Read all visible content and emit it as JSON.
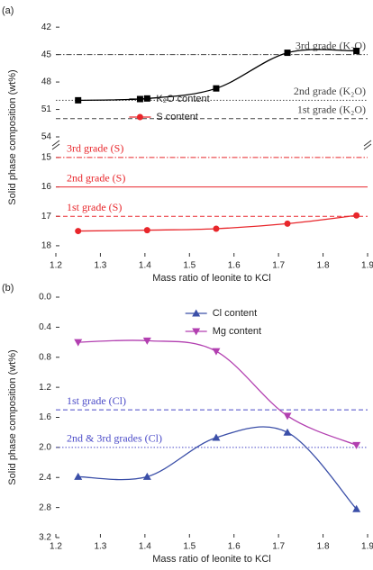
{
  "chart_data": [
    {
      "type": "line",
      "panel_label": "(a)",
      "x_label": "Mass ratio of leonite to KCl",
      "y_label": "Solid phase composition (wt%)",
      "xlim": [
        1.2,
        1.9
      ],
      "xticks": [
        1.2,
        1.3,
        1.4,
        1.5,
        1.6,
        1.7,
        1.8,
        1.9
      ],
      "y_segments": [
        {
          "ylim": [
            14.85,
            18.37
          ],
          "yticks": [
            15,
            16,
            17,
            18
          ]
        },
        {
          "ylim": [
            41,
            54
          ],
          "yticks": [
            42,
            45,
            48,
            51,
            54
          ]
        }
      ],
      "legend": "center left",
      "series": [
        {
          "name": "K₂O content",
          "color": "#000000",
          "marker": "square",
          "segment": 1,
          "x": [
            1.25,
            1.405,
            1.56,
            1.72,
            1.875
          ],
          "values": [
            50.0,
            49.8,
            48.7,
            44.8,
            44.6
          ]
        },
        {
          "name": "S content",
          "color": "#e8262b",
          "marker": "circle",
          "segment": 0,
          "x": [
            1.25,
            1.405,
            1.56,
            1.72,
            1.875
          ],
          "values": [
            17.5,
            17.47,
            17.42,
            17.25,
            16.97
          ]
        }
      ],
      "reference_lines": [
        {
          "label": "1st grade (K₂O)",
          "value": 52,
          "color": "#444444",
          "dash": "dashed",
          "segment": 1
        },
        {
          "label": "2nd grade (K₂O)",
          "value": 50,
          "color": "#444444",
          "dash": "dotted",
          "segment": 1
        },
        {
          "label": "3rd grade (K₂O)",
          "value": 45,
          "color": "#444444",
          "dash": "dashdot",
          "segment": 1
        },
        {
          "label": "1st grade (S)",
          "value": 17,
          "color": "#e8262b",
          "dash": "dashed",
          "segment": 0
        },
        {
          "label": "2nd grade (S)",
          "value": 16,
          "color": "#e8262b",
          "dash": "solid",
          "segment": 0
        },
        {
          "label": "3rd grade (S)",
          "value": 15,
          "color": "#e8262b",
          "dash": "dashdot",
          "segment": 0
        }
      ]
    },
    {
      "type": "line",
      "panel_label": "(b)",
      "x_label": "Mass ratio of leonite to KCl",
      "y_label": "Solid phase composition (wt%)",
      "xlim": [
        1.2,
        1.9
      ],
      "xticks": [
        1.2,
        1.3,
        1.4,
        1.5,
        1.6,
        1.7,
        1.8,
        1.9
      ],
      "y_segments": [
        {
          "ylim": [
            0,
            3.2
          ],
          "yticks": [
            {
              "value": 0,
              "label": "0.0"
            },
            0.4,
            0.8,
            1.2,
            1.6,
            {
              "value": 2,
              "label": "2.0"
            },
            2.4,
            2.8,
            3.2
          ]
        }
      ],
      "legend": "upper center",
      "series": [
        {
          "name": "Cl content",
          "color": "#3b4fa8",
          "marker": "triangle-up",
          "segment": 0,
          "x": [
            1.25,
            1.405,
            1.56,
            1.72,
            1.875
          ],
          "values": [
            2.39,
            2.39,
            1.87,
            1.8,
            2.82
          ]
        },
        {
          "name": "Mg content",
          "color": "#b23fb0",
          "marker": "triangle-down",
          "segment": 0,
          "x": [
            1.25,
            1.405,
            1.56,
            1.72,
            1.875
          ],
          "values": [
            0.6,
            0.58,
            0.72,
            1.58,
            1.97
          ]
        }
      ],
      "reference_lines": [
        {
          "label": "2nd & 3rd grades (Cl)",
          "value": 2.0,
          "color": "#4b4bc8",
          "dash": "dotted",
          "segment": 0
        },
        {
          "label": "1st grade (Cl)",
          "value": 1.5,
          "color": "#4b4bc8",
          "dash": "dashed",
          "segment": 0
        }
      ]
    }
  ]
}
